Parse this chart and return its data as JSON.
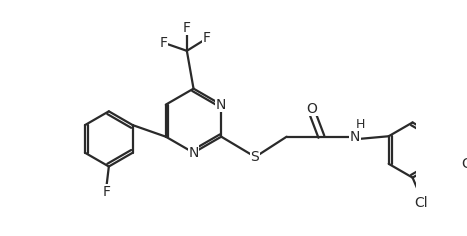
{
  "bg_color": "#ffffff",
  "line_color": "#2a2a2a",
  "line_width": 1.6,
  "font_size": 10,
  "figsize": [
    4.67,
    2.36
  ],
  "dpi": 100,
  "xlim": [
    0,
    9.34
  ],
  "ylim": [
    0,
    4.72
  ]
}
